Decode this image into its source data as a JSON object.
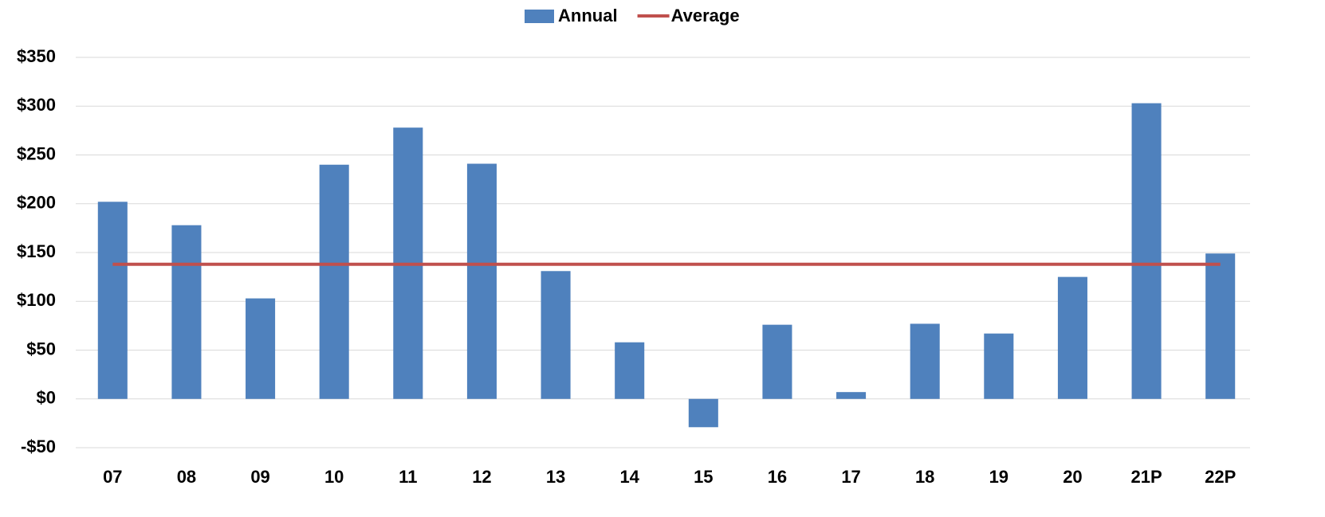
{
  "chart_data": {
    "type": "bar",
    "categories": [
      "07",
      "08",
      "09",
      "10",
      "11",
      "12",
      "13",
      "14",
      "15",
      "16",
      "17",
      "18",
      "19",
      "20",
      "21P",
      "22P"
    ],
    "series": [
      {
        "name": "Annual",
        "type": "bar",
        "color": "#4f81bd",
        "values": [
          202,
          178,
          103,
          240,
          278,
          241,
          131,
          58,
          -29,
          76,
          7,
          77,
          67,
          125,
          303,
          149
        ]
      },
      {
        "name": "Average",
        "type": "line",
        "color": "#c0504d",
        "values": [
          138,
          138,
          138,
          138,
          138,
          138,
          138,
          138,
          138,
          138,
          138,
          138,
          138,
          138,
          138,
          138
        ]
      }
    ],
    "ylim": [
      -50,
      350
    ],
    "yticks": [
      {
        "value": -50,
        "label": "-$50"
      },
      {
        "value": 0,
        "label": "$0"
      },
      {
        "value": 50,
        "label": "$50"
      },
      {
        "value": 100,
        "label": "$100"
      },
      {
        "value": 150,
        "label": "$150"
      },
      {
        "value": 200,
        "label": "$200"
      },
      {
        "value": 250,
        "label": "$250"
      },
      {
        "value": 300,
        "label": "$300"
      },
      {
        "value": 350,
        "label": "$350"
      }
    ],
    "grid": true,
    "legend": "top"
  }
}
